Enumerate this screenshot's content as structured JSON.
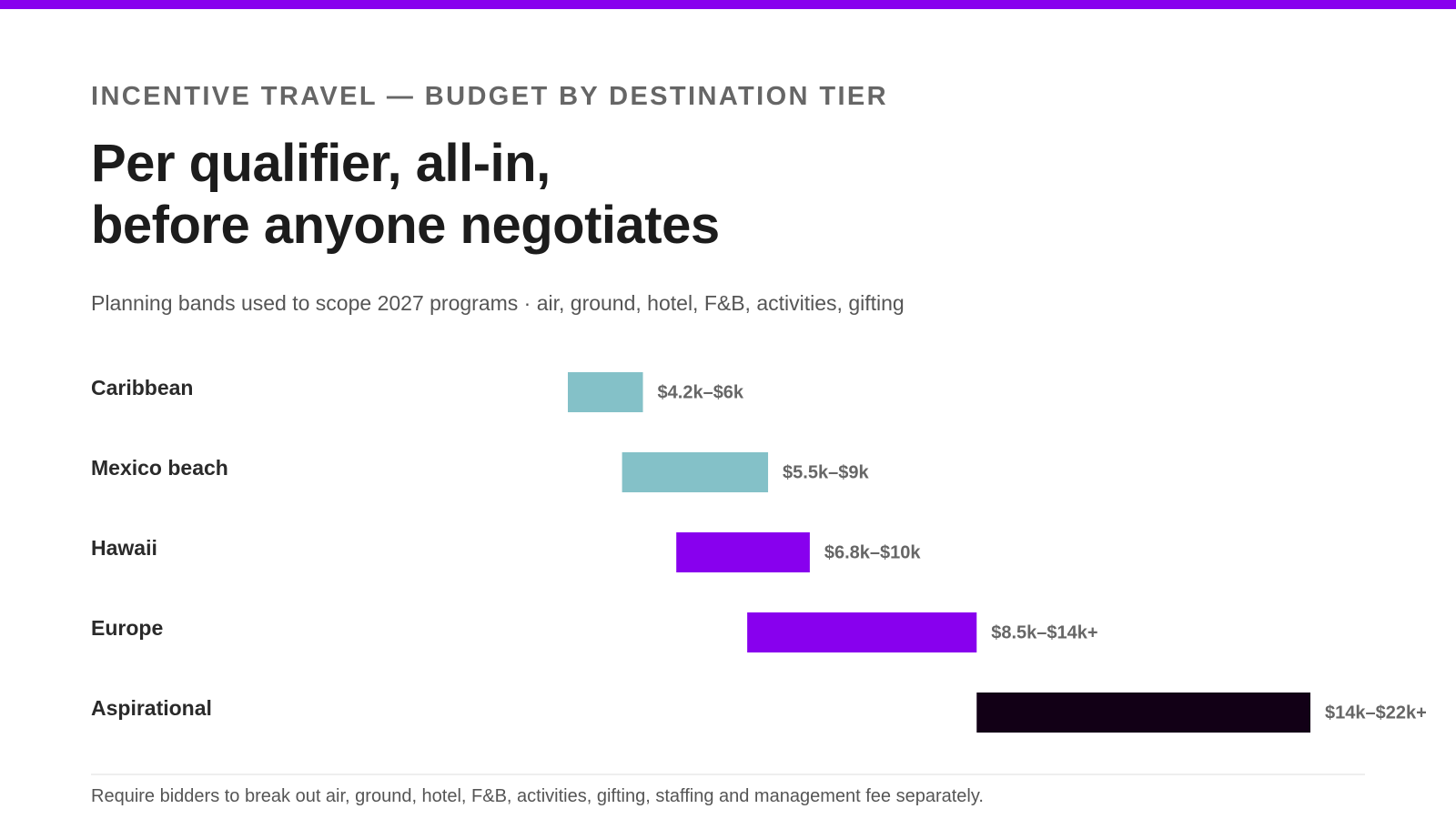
{
  "header": {
    "eyebrow": "INCENTIVE TRAVEL — BUDGET BY DESTINATION TIER",
    "title_line1": "Per qualifier, all-in,",
    "title_line2": "before anyone negotiates",
    "subtitle": "Planning bands used to scope 2027 programs · air, ground, hotel, F&B, activities, gifting"
  },
  "footnote": "Require bidders to break out air, ground, hotel, F&B, activities, gifting, staffing and management fee separately.",
  "colors": {
    "accent": "#8800ee",
    "teal": "#84c1c8",
    "purple": "#8800ee",
    "dark": "#120016",
    "label": "#2a2a2a",
    "value_label": "#666666"
  },
  "chart_data": {
    "type": "bar",
    "orientation": "horizontal-range",
    "unit": "USD thousands per qualifier",
    "categories": [
      "Caribbean",
      "Mexico beach",
      "Hawaii",
      "Europe",
      "Aspirational"
    ],
    "ranges": [
      {
        "category": "Caribbean",
        "low": 4.2,
        "high": 6,
        "label": "$4.2k–$6k",
        "color": "teal"
      },
      {
        "category": "Mexico beach",
        "low": 5.5,
        "high": 9,
        "label": "$5.5k–$9k",
        "color": "teal"
      },
      {
        "category": "Hawaii",
        "low": 6.8,
        "high": 10,
        "label": "$6.8k–$10k",
        "color": "purple"
      },
      {
        "category": "Europe",
        "low": 8.5,
        "high": 14,
        "label": "$8.5k–$14k+",
        "color": "purple"
      },
      {
        "category": "Aspirational",
        "low": 14,
        "high": 22,
        "label": "$14k–$22k+",
        "color": "dark"
      }
    ],
    "xlim": [
      4.2,
      22
    ],
    "grid": false,
    "legend": "none"
  }
}
